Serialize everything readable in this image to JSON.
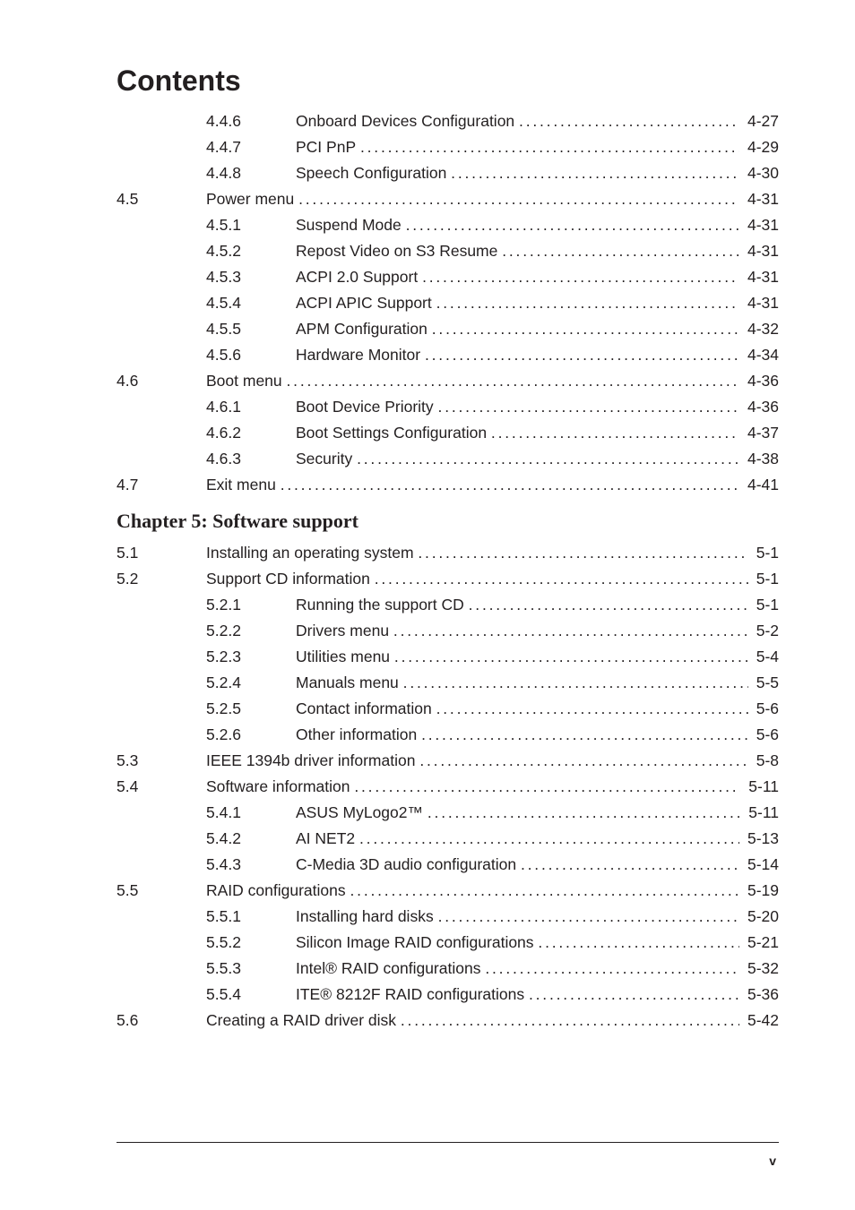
{
  "title": "Contents",
  "chapter_heading": "Chapter 5: Software support",
  "footer_page": "v",
  "block1": [
    {
      "secnum": "",
      "subnum": "4.4.6",
      "label": "Onboard Devices Configuration",
      "page": "4-27"
    },
    {
      "secnum": "",
      "subnum": "4.4.7",
      "label": "PCI PnP",
      "page": "4-29"
    },
    {
      "secnum": "",
      "subnum": "4.4.8",
      "label": "Speech Configuration",
      "page": "4-30"
    },
    {
      "secnum": "4.5",
      "subnum": "",
      "label": "Power menu",
      "page": "4-31"
    },
    {
      "secnum": "",
      "subnum": "4.5.1",
      "label": "Suspend Mode",
      "page": "4-31"
    },
    {
      "secnum": "",
      "subnum": "4.5.2",
      "label": "Repost Video on S3 Resume",
      "page": "4-31"
    },
    {
      "secnum": "",
      "subnum": "4.5.3",
      "label": "ACPI 2.0 Support",
      "page": "4-31"
    },
    {
      "secnum": "",
      "subnum": "4.5.4",
      "label": "ACPI APIC Support",
      "page": "4-31"
    },
    {
      "secnum": "",
      "subnum": "4.5.5",
      "label": "APM Configuration",
      "page": "4-32"
    },
    {
      "secnum": "",
      "subnum": "4.5.6",
      "label": "Hardware Monitor",
      "page": "4-34"
    },
    {
      "secnum": "4.6",
      "subnum": "",
      "label": "Boot menu",
      "page": "4-36"
    },
    {
      "secnum": "",
      "subnum": "4.6.1",
      "label": "Boot Device Priority",
      "page": "4-36"
    },
    {
      "secnum": "",
      "subnum": "4.6.2",
      "label": "Boot Settings Configuration",
      "page": "4-37"
    },
    {
      "secnum": "",
      "subnum": "4.6.3",
      "label": "Security",
      "page": "4-38"
    },
    {
      "secnum": "4.7",
      "subnum": "",
      "label": "Exit menu",
      "page": "4-41"
    }
  ],
  "block2": [
    {
      "secnum": "5.1",
      "subnum": "",
      "label": "Installing an operating system",
      "page": "5-1"
    },
    {
      "secnum": "5.2",
      "subnum": "",
      "label": "Support CD information",
      "page": "5-1"
    },
    {
      "secnum": "",
      "subnum": "5.2.1",
      "label": "Running the support CD",
      "page": "5-1"
    },
    {
      "secnum": "",
      "subnum": "5.2.2",
      "label": "Drivers menu",
      "page": "5-2"
    },
    {
      "secnum": "",
      "subnum": "5.2.3",
      "label": "Utilities menu",
      "page": "5-4"
    },
    {
      "secnum": "",
      "subnum": "5.2.4",
      "label": "Manuals menu",
      "page": "5-5"
    },
    {
      "secnum": "",
      "subnum": "5.2.5",
      "label": "Contact information",
      "page": "5-6"
    },
    {
      "secnum": "",
      "subnum": "5.2.6",
      "label": "Other information",
      "page": "5-6"
    },
    {
      "secnum": "5.3",
      "subnum": "",
      "label": "IEEE 1394b driver information",
      "page": "5-8"
    },
    {
      "secnum": "5.4",
      "subnum": "",
      "label": "Software information",
      "page": "5-11"
    },
    {
      "secnum": "",
      "subnum": "5.4.1",
      "label": "ASUS MyLogo2™",
      "page": "5-11"
    },
    {
      "secnum": "",
      "subnum": "5.4.2",
      "label": "AI NET2",
      "page": "5-13"
    },
    {
      "secnum": "",
      "subnum": "5.4.3",
      "label": "C-Media 3D audio configuration",
      "page": "5-14"
    },
    {
      "secnum": "5.5",
      "subnum": "",
      "label": "RAID configurations",
      "page": "5-19"
    },
    {
      "secnum": "",
      "subnum": "5.5.1",
      "label": "Installing hard disks",
      "page": "5-20"
    },
    {
      "secnum": "",
      "subnum": "5.5.2",
      "label": "Silicon Image RAID configurations",
      "page": "5-21"
    },
    {
      "secnum": "",
      "subnum": "5.5.3",
      "label": "Intel® RAID configurations",
      "page": "5-32"
    },
    {
      "secnum": "",
      "subnum": "5.5.4",
      "label": "ITE® 8212F RAID configurations",
      "page": "5-36"
    },
    {
      "secnum": "5.6",
      "subnum": "",
      "label": "Creating a RAID driver disk",
      "page": "5-42"
    }
  ]
}
